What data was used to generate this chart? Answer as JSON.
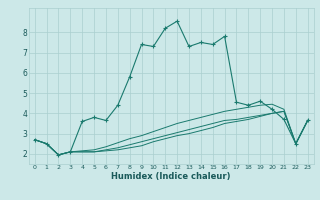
{
  "xlabel": "Humidex (Indice chaleur)",
  "bg_color": "#cce8e8",
  "grid_color": "#aacfcf",
  "line_color": "#1a7a6e",
  "xlim": [
    -0.5,
    23.5
  ],
  "ylim": [
    1.5,
    9.2
  ],
  "yticks": [
    2,
    3,
    4,
    5,
    6,
    7,
    8
  ],
  "xticks": [
    0,
    1,
    2,
    3,
    4,
    5,
    6,
    7,
    8,
    9,
    10,
    11,
    12,
    13,
    14,
    15,
    16,
    17,
    18,
    19,
    20,
    21,
    22,
    23
  ],
  "series": [
    [
      2.7,
      2.5,
      1.95,
      2.1,
      3.6,
      3.8,
      3.65,
      4.4,
      5.8,
      7.4,
      7.3,
      8.2,
      8.55,
      7.3,
      7.5,
      7.4,
      7.8,
      4.55,
      4.4,
      4.6,
      4.2,
      3.7,
      2.5,
      3.65
    ],
    [
      2.7,
      2.5,
      1.95,
      2.1,
      2.1,
      2.1,
      2.15,
      2.2,
      2.3,
      2.4,
      2.6,
      2.75,
      2.9,
      3.0,
      3.15,
      3.3,
      3.5,
      3.6,
      3.7,
      3.85,
      4.0,
      4.1,
      2.5,
      3.65
    ],
    [
      2.7,
      2.5,
      1.95,
      2.1,
      2.1,
      2.1,
      2.2,
      2.3,
      2.45,
      2.6,
      2.75,
      2.9,
      3.05,
      3.2,
      3.35,
      3.5,
      3.65,
      3.7,
      3.8,
      3.9,
      4.0,
      4.1,
      2.5,
      3.65
    ],
    [
      2.7,
      2.5,
      1.95,
      2.1,
      2.15,
      2.2,
      2.35,
      2.55,
      2.75,
      2.9,
      3.1,
      3.3,
      3.5,
      3.65,
      3.8,
      3.95,
      4.1,
      4.2,
      4.3,
      4.4,
      4.45,
      4.2,
      2.5,
      3.65
    ]
  ]
}
